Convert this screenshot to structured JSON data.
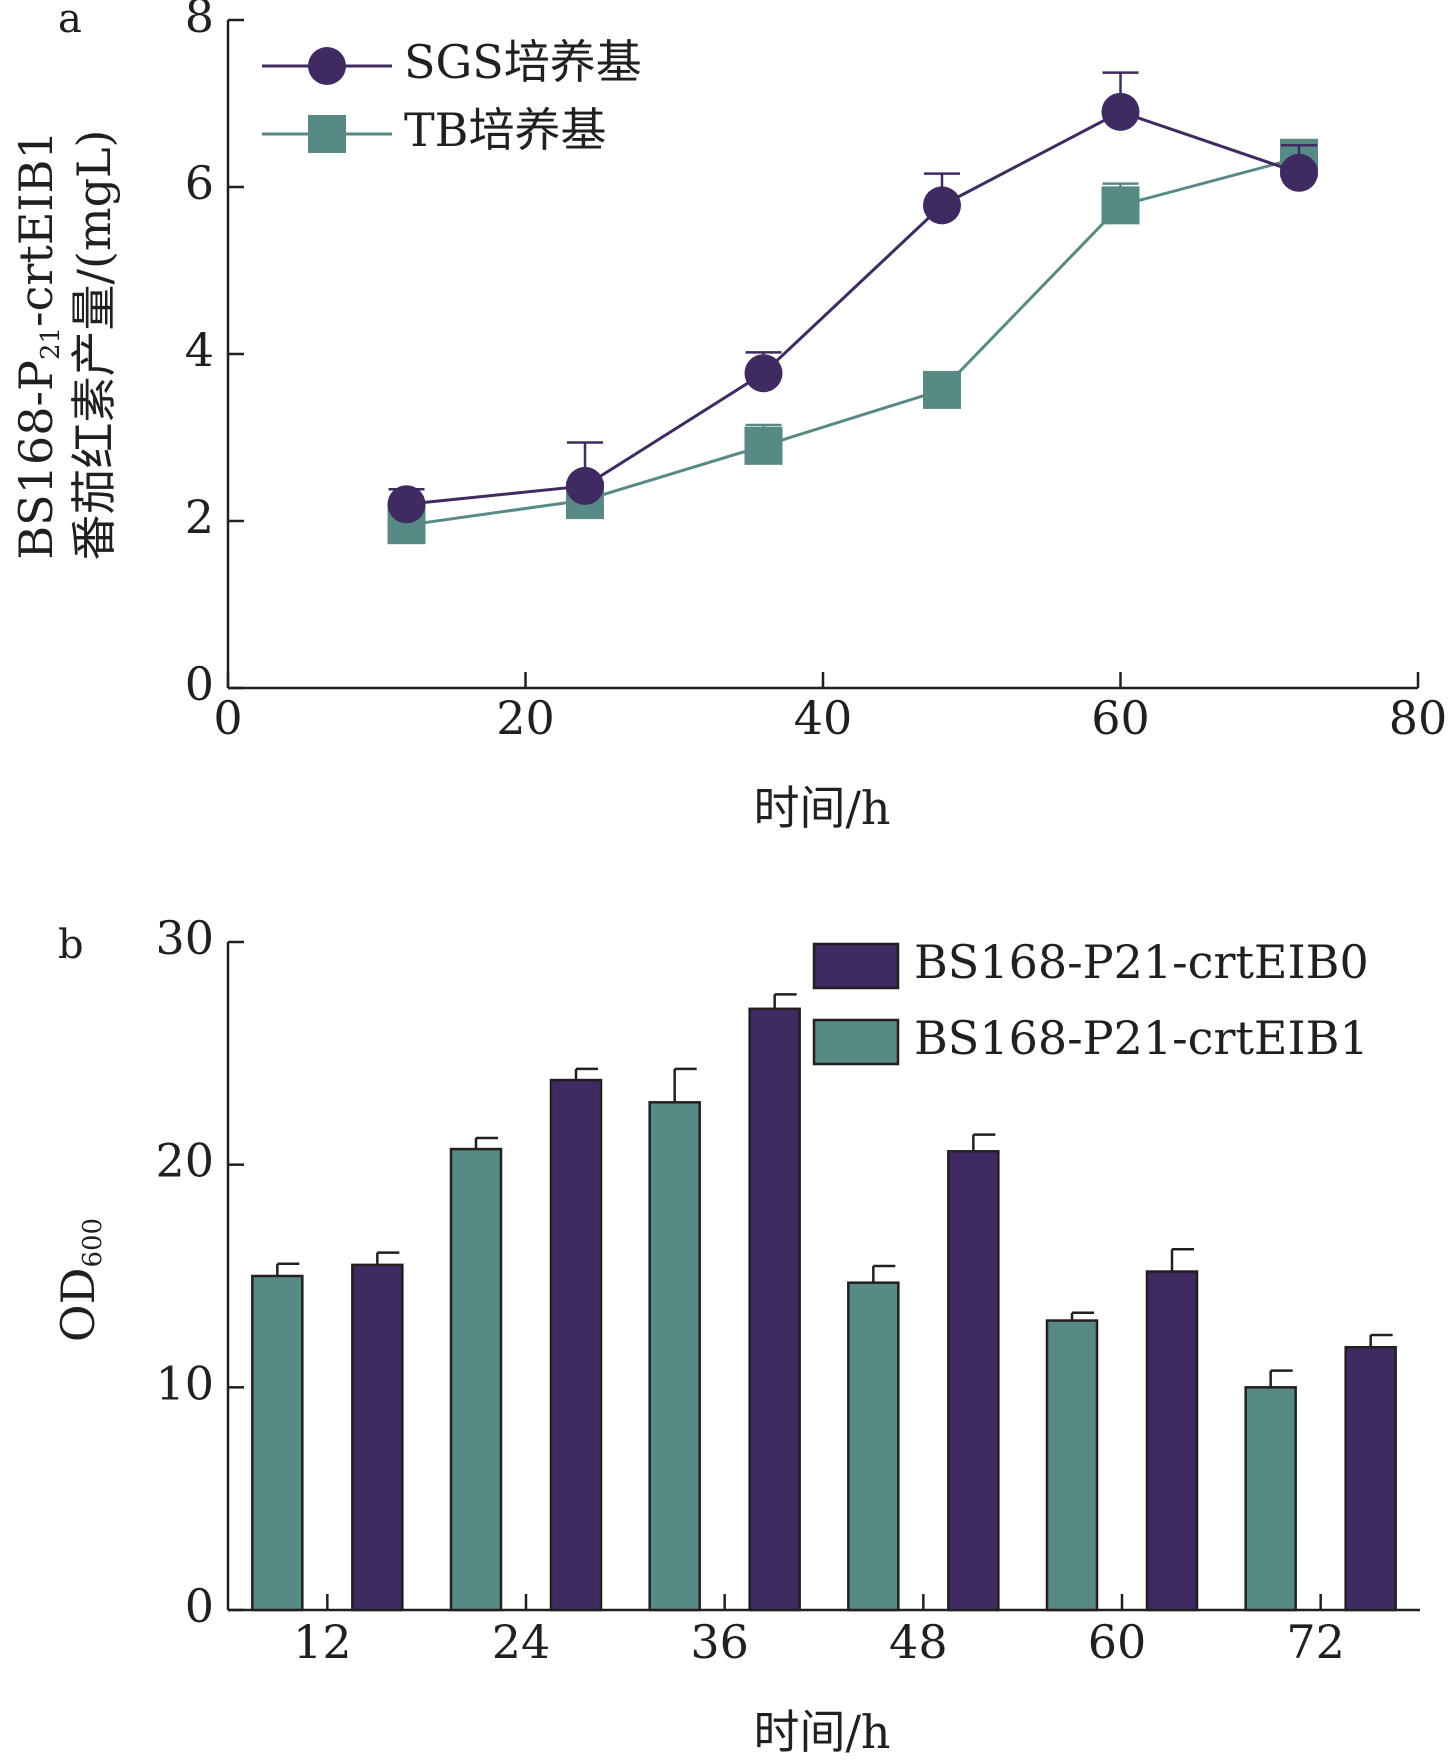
{
  "colors": {
    "purple": "#3f2a62",
    "teal": "#578a84",
    "axis": "#231f20"
  },
  "chart_data": [
    {
      "type": "line",
      "panel_label": "a",
      "xlabel": "时间/h",
      "ylabel": {
        "line1": "BS168-P",
        "sub": "21",
        "line1b": "-crtEIB1",
        "line2": "番茄红素产量/(mgL)"
      },
      "xlim": [
        0,
        80
      ],
      "ylim": [
        0,
        8
      ],
      "xticks": [
        0,
        20,
        40,
        60,
        80
      ],
      "yticks": [
        0,
        2,
        4,
        6,
        8
      ],
      "legend_position": "top-left",
      "series": [
        {
          "name": "SGS培养基",
          "marker": "circle",
          "color": "#3f2a62",
          "x": [
            12,
            24,
            36,
            48,
            60,
            72
          ],
          "y": [
            2.2,
            2.42,
            3.77,
            5.78,
            6.9,
            6.17
          ],
          "err": [
            0.18,
            0.52,
            0.25,
            0.38,
            0.47,
            0.33
          ]
        },
        {
          "name": "TB培养基",
          "marker": "square",
          "color": "#578a84",
          "x": [
            12,
            24,
            36,
            48,
            60,
            72
          ],
          "y": [
            1.95,
            2.25,
            2.9,
            3.57,
            5.78,
            6.35
          ],
          "err": [
            0.1,
            0.12,
            0.25,
            0.2,
            0.26,
            0.15
          ]
        }
      ]
    },
    {
      "type": "bar",
      "panel_label": "b",
      "xlabel": "时间/h",
      "ylabel": {
        "text": "OD",
        "sub": "600"
      },
      "ylim": [
        0,
        30
      ],
      "yticks": [
        0,
        10,
        20,
        30
      ],
      "categories": [
        "12",
        "24",
        "36",
        "48",
        "60",
        "72"
      ],
      "legend_position": "top-right",
      "series": [
        {
          "name": "BS168-P21-crtEIB1",
          "color": "#578a84",
          "values": [
            15.0,
            20.7,
            22.8,
            14.7,
            13.0,
            10.0
          ],
          "err": [
            0.55,
            0.5,
            1.5,
            0.75,
            0.35,
            0.75
          ]
        },
        {
          "name": "BS168-P21-crtEIB0",
          "color": "#3f2a62",
          "values": [
            15.5,
            23.8,
            27.0,
            20.6,
            15.2,
            11.8
          ],
          "err": [
            0.55,
            0.5,
            0.65,
            0.75,
            1.0,
            0.55
          ]
        }
      ]
    }
  ]
}
